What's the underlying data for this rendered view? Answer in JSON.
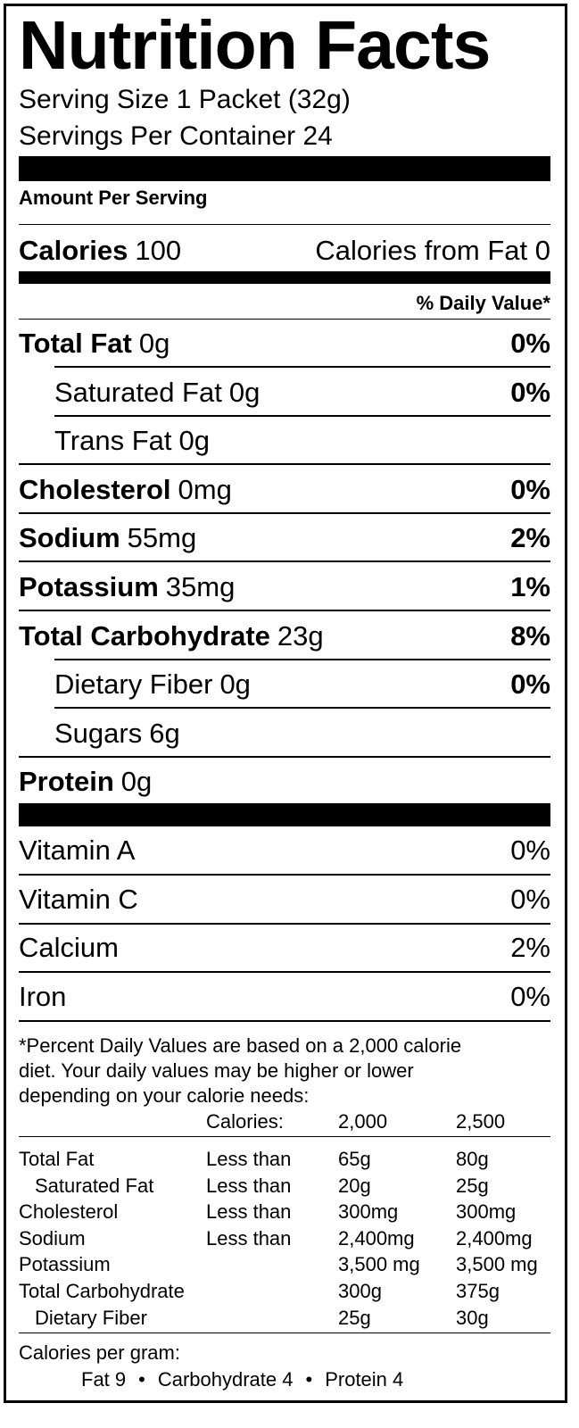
{
  "title": "Nutrition Facts",
  "serving_size": "Serving Size 1 Packet (32g)",
  "servings_per_container": "Servings Per Container 24",
  "amount_per_serving": "Amount Per Serving",
  "calories": {
    "label": "Calories",
    "value": "100",
    "from_fat": "Calories from Fat 0"
  },
  "daily_value_header": "% Daily Value*",
  "nutrients": [
    {
      "name": "Total Fat",
      "amount": "0g",
      "dv": "0%"
    },
    {
      "name": "Saturated Fat",
      "amount": "0g",
      "dv": "0%"
    },
    {
      "name": "Trans Fat",
      "amount": "0g"
    },
    {
      "name": "Cholesterol",
      "amount": "0mg",
      "dv": "0%"
    },
    {
      "name": "Sodium",
      "amount": "55mg",
      "dv": "2%"
    },
    {
      "name": "Potassium",
      "amount": "35mg",
      "dv": "1%"
    },
    {
      "name": "Total Carbohydrate",
      "amount": "23g",
      "dv": "8%"
    },
    {
      "name": "Dietary Fiber",
      "amount": "0g",
      "dv": "0%"
    },
    {
      "name": "Sugars",
      "amount": "6g"
    },
    {
      "name": "Protein",
      "amount": "0g"
    }
  ],
  "vitamins": [
    {
      "name": "Vitamin A",
      "dv": "0%"
    },
    {
      "name": "Vitamin C",
      "dv": "0%"
    },
    {
      "name": "Calcium",
      "dv": "2%"
    },
    {
      "name": "Iron",
      "dv": "0%"
    }
  ],
  "footnote": [
    "*Percent Daily Values are based on a 2,000 calorie",
    "diet. Your daily values may be higher or lower",
    "depending on your calorie needs:"
  ],
  "reference_table": {
    "header": {
      "label": "Calories:",
      "values": [
        "2,000",
        "2,500"
      ]
    },
    "rows": [
      {
        "name": "Total Fat",
        "qualifier": "Less than",
        "values": [
          "65g",
          "80g"
        ]
      },
      {
        "name": "Saturated Fat",
        "qualifier": "Less than",
        "values": [
          "20g",
          "25g"
        ]
      },
      {
        "name": "Cholesterol",
        "qualifier": "Less than",
        "values": [
          "300mg",
          "300mg"
        ]
      },
      {
        "name": "Sodium",
        "qualifier": "Less than",
        "values": [
          "2,400mg",
          "2,400mg"
        ]
      },
      {
        "name": "Potassium",
        "values": [
          "3,500 mg",
          "3,500 mg"
        ]
      },
      {
        "name": "Total Carbohydrate",
        "values": [
          "300g",
          "375g"
        ]
      },
      {
        "name": "Dietary Fiber",
        "values": [
          "25g",
          "30g"
        ]
      }
    ]
  },
  "calories_per_gram": {
    "label": "Calories per gram:",
    "items": [
      "Fat 9",
      "Carbohydrate 4",
      "Protein 4"
    ]
  }
}
